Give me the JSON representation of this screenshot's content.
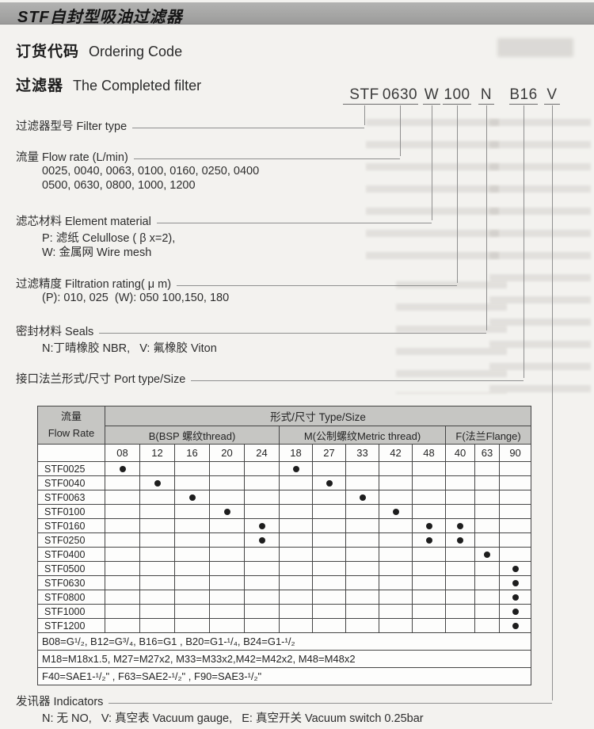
{
  "header": {
    "bar_title": "STF自封型吸油过滤器"
  },
  "sections": {
    "ordering": {
      "zh": "订货代码",
      "en": "Ordering Code"
    },
    "filter": {
      "zh": "过滤器",
      "en": "The Completed filter"
    }
  },
  "ordering_code": {
    "segments": [
      "STF",
      "0630",
      "W",
      "100",
      "N",
      "B16",
      "V"
    ]
  },
  "code_legend": {
    "filter_type": {
      "label": "过滤器型号 Filter type"
    },
    "flow_rate": {
      "label": "流量 Flow rate (L/min)",
      "line1": "0025, 0040, 0063, 0100, 0160, 0250, 0400",
      "line2": "0500, 0630, 0800, 1000, 1200"
    },
    "element_material": {
      "label": "滤芯材料 Element material",
      "line1": "P: 滤纸 Celullose ( β x=2),",
      "line2": "W: 金属网 Wire mesh"
    },
    "filtration_rating": {
      "label": "过滤精度 Filtration rating( μ m)",
      "line1": "(P): 010, 025  (W): 050 100,150, 180"
    },
    "seals": {
      "label": "密封材料 Seals",
      "line1": "N:丁晴橡胶 NBR,   V: 氟橡胶 Viton"
    },
    "port": {
      "label": "接口法兰形式/尺寸 Port type/Size"
    },
    "indicators": {
      "label": "发讯器 Indicators",
      "line1": "N: 无 NO,   V: 真空表 Vacuum gauge,   E: 真空开关 Vacuum switch 0.25bar"
    }
  },
  "table": {
    "corner_zh": "流量",
    "corner_en": "Flow Rate",
    "type_size": "形式/尺寸  Type/Size",
    "groups": [
      {
        "label": "B(BSP 螺纹thread)",
        "sizes": [
          "08",
          "12",
          "16",
          "20",
          "24"
        ]
      },
      {
        "label": "M(公制螺纹Metric thread)",
        "sizes": [
          "18",
          "27",
          "33",
          "42",
          "48"
        ]
      },
      {
        "label": "F(法兰Flange)",
        "sizes": [
          "40",
          "63",
          "90"
        ]
      }
    ],
    "rows": [
      {
        "model": "STF0025",
        "dots": [
          0,
          5
        ]
      },
      {
        "model": "STF0040",
        "dots": [
          1,
          6
        ]
      },
      {
        "model": "STF0063",
        "dots": [
          2,
          7
        ]
      },
      {
        "model": "STF0100",
        "dots": [
          3,
          8
        ]
      },
      {
        "model": "STF0160",
        "dots": [
          4,
          9,
          10
        ]
      },
      {
        "model": "STF0250",
        "dots": [
          4,
          9,
          10
        ]
      },
      {
        "model": "STF0400",
        "dots": [
          11
        ]
      },
      {
        "model": "STF0500",
        "dots": [
          12
        ]
      },
      {
        "model": "STF0630",
        "dots": [
          12
        ]
      },
      {
        "model": "STF0800",
        "dots": [
          12
        ]
      },
      {
        "model": "STF1000",
        "dots": [
          12
        ]
      },
      {
        "model": "STF1200",
        "dots": [
          12
        ]
      }
    ],
    "notes": [
      "B08=G¹/₂, B12=G³/₄, B16=G1 , B20=G1-¹/₄, B24=G1-¹/₂",
      "M18=M18x1.5, M27=M27x2, M33=M33x2,M42=M42x2, M48=M48x2",
      "F40=SAE1-¹/₂\" , F63=SAE2-¹/₂\" , F90=SAE3-¹/₂\""
    ]
  }
}
